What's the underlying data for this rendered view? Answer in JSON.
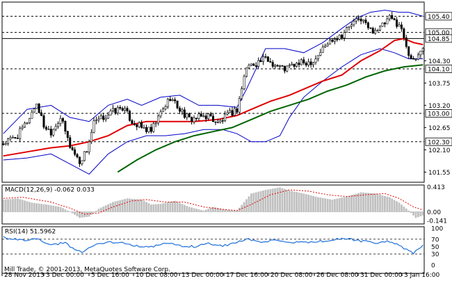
{
  "chart_data": [
    {
      "type": "candlestick",
      "panel": "price",
      "ylim": [
        101.3,
        105.75
      ],
      "y_ticks": [
        "105.40",
        "105.00",
        "104.85",
        "104.30",
        "104.10",
        "103.75",
        "103.20",
        "103.00",
        "102.65",
        "102.30",
        "102.10",
        "101.55"
      ],
      "y_tick_values": [
        105.4,
        105.0,
        104.85,
        104.3,
        104.1,
        103.75,
        103.2,
        103.0,
        102.65,
        102.3,
        102.1,
        101.55
      ],
      "highlight_labels": [
        "105.40",
        "105.00",
        "104.85",
        "104.10",
        "103.00",
        "102.30"
      ],
      "hlines": [
        105.4,
        105.0,
        104.85,
        104.1,
        103.0,
        102.3
      ],
      "x_labels": [
        "28 Nov 2013",
        "3 Dec 00:00",
        "5 Dec 16:00",
        "10 Dec 08:00",
        "13 Dec 00:00",
        "17 Dec 16:00",
        "20 Dec 08:00",
        "26 Dec 08:00",
        "31 Dec 00:00",
        "3 Jan 16:00"
      ],
      "close_anchors": [
        [
          0,
          102.25
        ],
        [
          6,
          102.45
        ],
        [
          10,
          102.8
        ],
        [
          14,
          103.25
        ],
        [
          17,
          102.7
        ],
        [
          20,
          102.55
        ],
        [
          24,
          102.9
        ],
        [
          28,
          102.2
        ],
        [
          32,
          101.8
        ],
        [
          35,
          102.1
        ],
        [
          38,
          102.75
        ],
        [
          42,
          102.9
        ],
        [
          46,
          103.05
        ],
        [
          50,
          103.15
        ],
        [
          54,
          102.8
        ],
        [
          58,
          102.65
        ],
        [
          62,
          102.55
        ],
        [
          66,
          103.0
        ],
        [
          70,
          103.4
        ],
        [
          74,
          103.1
        ],
        [
          78,
          102.85
        ],
        [
          82,
          102.9
        ],
        [
          86,
          102.95
        ],
        [
          90,
          102.75
        ],
        [
          94,
          102.95
        ],
        [
          98,
          103.1
        ],
        [
          102,
          104.15
        ],
        [
          106,
          104.25
        ],
        [
          110,
          104.35
        ],
        [
          114,
          104.2
        ],
        [
          118,
          104.1
        ],
        [
          122,
          104.2
        ],
        [
          126,
          104.25
        ],
        [
          130,
          104.3
        ],
        [
          134,
          104.6
        ],
        [
          138,
          104.85
        ],
        [
          142,
          104.95
        ],
        [
          146,
          105.2
        ],
        [
          150,
          105.35
        ],
        [
          154,
          105.05
        ],
        [
          158,
          105.1
        ],
        [
          162,
          105.35
        ],
        [
          166,
          105.2
        ],
        [
          168,
          104.9
        ],
        [
          170,
          104.5
        ],
        [
          172,
          104.25
        ],
        [
          174,
          104.45
        ],
        [
          176,
          104.65
        ]
      ],
      "series": [
        {
          "name": "Bollinger upper",
          "color": "#0000c8",
          "values": [
            [
              0,
              102.5
            ],
            [
              10,
              103.1
            ],
            [
              20,
              103.2
            ],
            [
              28,
              102.9
            ],
            [
              36,
              102.8
            ],
            [
              44,
              103.2
            ],
            [
              52,
              103.35
            ],
            [
              58,
              103.2
            ],
            [
              66,
              103.4
            ],
            [
              74,
              103.45
            ],
            [
              82,
              103.2
            ],
            [
              90,
              103.2
            ],
            [
              98,
              103.15
            ],
            [
              102,
              103.6
            ],
            [
              110,
              104.6
            ],
            [
              118,
              104.6
            ],
            [
              126,
              104.5
            ],
            [
              134,
              104.75
            ],
            [
              142,
              105.1
            ],
            [
              148,
              105.35
            ],
            [
              154,
              105.5
            ],
            [
              160,
              105.55
            ],
            [
              166,
              105.5
            ],
            [
              170,
              105.5
            ],
            [
              176,
              105.4
            ]
          ]
        },
        {
          "name": "Bollinger lower",
          "color": "#0000c8",
          "values": [
            [
              0,
              101.85
            ],
            [
              10,
              101.9
            ],
            [
              20,
              102.0
            ],
            [
              28,
              101.75
            ],
            [
              36,
              101.5
            ],
            [
              44,
              102.0
            ],
            [
              52,
              102.3
            ],
            [
              60,
              102.45
            ],
            [
              68,
              102.45
            ],
            [
              76,
              102.5
            ],
            [
              84,
              102.6
            ],
            [
              92,
              102.6
            ],
            [
              98,
              102.5
            ],
            [
              104,
              102.3
            ],
            [
              110,
              102.3
            ],
            [
              116,
              102.45
            ],
            [
              120,
              102.9
            ],
            [
              126,
              103.4
            ],
            [
              134,
              103.8
            ],
            [
              142,
              104.15
            ],
            [
              150,
              104.45
            ],
            [
              158,
              104.6
            ],
            [
              164,
              104.5
            ],
            [
              170,
              104.35
            ],
            [
              176,
              104.35
            ]
          ]
        },
        {
          "name": "MA red",
          "color": "#e00000",
          "values": [
            [
              0,
              101.95
            ],
            [
              10,
              102.05
            ],
            [
              20,
              102.15
            ],
            [
              28,
              102.2
            ],
            [
              36,
              102.3
            ],
            [
              44,
              102.45
            ],
            [
              52,
              102.7
            ],
            [
              60,
              102.8
            ],
            [
              70,
              102.8
            ],
            [
              80,
              102.8
            ],
            [
              90,
              102.85
            ],
            [
              98,
              102.95
            ],
            [
              104,
              103.1
            ],
            [
              112,
              103.3
            ],
            [
              120,
              103.45
            ],
            [
              128,
              103.65
            ],
            [
              134,
              103.8
            ],
            [
              142,
              103.95
            ],
            [
              150,
              104.3
            ],
            [
              158,
              104.55
            ],
            [
              164,
              104.8
            ],
            [
              168,
              104.85
            ],
            [
              172,
              104.75
            ],
            [
              176,
              104.7
            ]
          ]
        },
        {
          "name": "MA green",
          "color": "#006400",
          "values": [
            [
              48,
              101.55
            ],
            [
              56,
              101.85
            ],
            [
              64,
              102.1
            ],
            [
              72,
              102.3
            ],
            [
              80,
              102.45
            ],
            [
              88,
              102.55
            ],
            [
              96,
              102.65
            ],
            [
              104,
              102.85
            ],
            [
              112,
              103.05
            ],
            [
              120,
              103.2
            ],
            [
              128,
              103.35
            ],
            [
              136,
              103.55
            ],
            [
              144,
              103.7
            ],
            [
              152,
              103.9
            ],
            [
              160,
              104.05
            ],
            [
              168,
              104.15
            ],
            [
              176,
              104.2
            ]
          ]
        }
      ]
    },
    {
      "type": "histogram",
      "panel": "macd",
      "label": "MACD(12,26,9) -0.062 0.033",
      "ylim": [
        -0.2,
        0.44
      ],
      "y_ticks": [
        "0.413",
        "0.00",
        "-0.141"
      ],
      "y_tick_values": [
        0.413,
        0.0,
        -0.141
      ],
      "hist_anchors": [
        [
          0,
          0.2
        ],
        [
          6,
          0.22
        ],
        [
          12,
          0.15
        ],
        [
          18,
          0.12
        ],
        [
          24,
          0.08
        ],
        [
          28,
          0.0
        ],
        [
          32,
          -0.1
        ],
        [
          36,
          -0.08
        ],
        [
          40,
          0.05
        ],
        [
          46,
          0.16
        ],
        [
          52,
          0.22
        ],
        [
          58,
          0.2
        ],
        [
          62,
          0.12
        ],
        [
          66,
          0.13
        ],
        [
          72,
          0.18
        ],
        [
          78,
          0.08
        ],
        [
          84,
          0.02
        ],
        [
          88,
          0.08
        ],
        [
          94,
          0.03
        ],
        [
          98,
          0.02
        ],
        [
          104,
          0.3
        ],
        [
          110,
          0.36
        ],
        [
          116,
          0.4
        ],
        [
          120,
          0.35
        ],
        [
          126,
          0.3
        ],
        [
          132,
          0.24
        ],
        [
          138,
          0.2
        ],
        [
          144,
          0.25
        ],
        [
          150,
          0.32
        ],
        [
          156,
          0.3
        ],
        [
          162,
          0.24
        ],
        [
          166,
          0.15
        ],
        [
          170,
          0.02
        ],
        [
          173,
          -0.1
        ],
        [
          176,
          -0.06
        ]
      ],
      "signal_anchors": [
        [
          0,
          0.22
        ],
        [
          8,
          0.24
        ],
        [
          14,
          0.2
        ],
        [
          20,
          0.16
        ],
        [
          28,
          0.06
        ],
        [
          34,
          -0.04
        ],
        [
          40,
          -0.02
        ],
        [
          46,
          0.08
        ],
        [
          54,
          0.18
        ],
        [
          60,
          0.2
        ],
        [
          68,
          0.16
        ],
        [
          76,
          0.16
        ],
        [
          84,
          0.08
        ],
        [
          92,
          0.04
        ],
        [
          98,
          0.02
        ],
        [
          104,
          0.12
        ],
        [
          112,
          0.28
        ],
        [
          120,
          0.36
        ],
        [
          128,
          0.34
        ],
        [
          136,
          0.28
        ],
        [
          144,
          0.25
        ],
        [
          152,
          0.28
        ],
        [
          160,
          0.3
        ],
        [
          166,
          0.22
        ],
        [
          172,
          0.08
        ],
        [
          176,
          0.03
        ]
      ]
    },
    {
      "type": "line",
      "panel": "rsi",
      "label": "RSI(14) 51.5962",
      "ylim": [
        0,
        100
      ],
      "y_ticks": [
        "100",
        "70",
        "50",
        "30",
        "0"
      ],
      "y_tick_values": [
        100,
        70,
        50,
        30,
        0
      ],
      "levels": [
        70,
        30
      ],
      "rsi_anchors": [
        [
          0,
          75
        ],
        [
          6,
          68
        ],
        [
          10,
          65
        ],
        [
          14,
          72
        ],
        [
          18,
          58
        ],
        [
          22,
          55
        ],
        [
          26,
          62
        ],
        [
          30,
          40
        ],
        [
          34,
          35
        ],
        [
          38,
          55
        ],
        [
          44,
          62
        ],
        [
          50,
          60
        ],
        [
          56,
          52
        ],
        [
          62,
          48
        ],
        [
          68,
          60
        ],
        [
          74,
          52
        ],
        [
          80,
          50
        ],
        [
          86,
          58
        ],
        [
          92,
          52
        ],
        [
          98,
          60
        ],
        [
          102,
          72
        ],
        [
          108,
          62
        ],
        [
          114,
          66
        ],
        [
          120,
          60
        ],
        [
          126,
          62
        ],
        [
          132,
          64
        ],
        [
          138,
          68
        ],
        [
          144,
          72
        ],
        [
          150,
          65
        ],
        [
          156,
          60
        ],
        [
          162,
          64
        ],
        [
          166,
          52
        ],
        [
          170,
          38
        ],
        [
          172,
          30
        ],
        [
          174,
          44
        ],
        [
          176,
          52
        ]
      ]
    }
  ],
  "footer": {
    "copyright": "Mill Trade, © 2001-2013, MetaQuotes Software Corp."
  },
  "colors": {
    "background": "#ffffff",
    "candles": "#000000",
    "bollinger": "#0000c8",
    "ma_red": "#e00000",
    "ma_green": "#006400",
    "macd_hist": "#c0c0c0",
    "macd_signal": "#e00000",
    "rsi": "#1e6fd9"
  }
}
